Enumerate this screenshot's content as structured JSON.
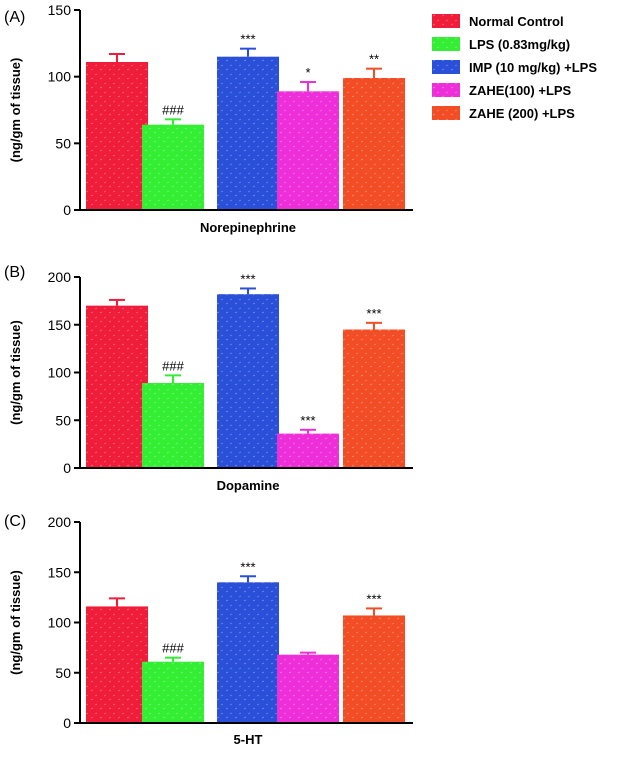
{
  "legend": [
    {
      "label": "Normal Control",
      "color": "#ef1c3a"
    },
    {
      "label": "LPS (0.83mg/kg)",
      "color": "#33ee33"
    },
    {
      "label": "IMP (10 mg/kg) +LPS",
      "color": "#2a4fd8"
    },
    {
      "label": "ZAHE(100) +LPS",
      "color": "#ee2fd9"
    },
    {
      "label": "ZAHE (200) +LPS",
      "color": "#f24d24"
    }
  ],
  "chart_data": [
    {
      "type": "bar",
      "panel_label": "(A)",
      "title": "",
      "xlabel": "Norepinephrine",
      "ylabel": "(ng/gm of tissue)",
      "ylim": [
        0,
        150
      ],
      "yticks": [
        "0",
        "50",
        "100",
        "150"
      ],
      "series": [
        {
          "name": "Normal Control",
          "value": 111,
          "error": 6,
          "annotation": ""
        },
        {
          "name": "LPS (0.83mg/kg)",
          "value": 64,
          "error": 4,
          "annotation": "###"
        },
        {
          "name": "IMP (10 mg/kg) +LPS",
          "value": 115,
          "error": 6,
          "annotation": "***"
        },
        {
          "name": "ZAHE(100) +LPS",
          "value": 89,
          "error": 7,
          "annotation": "*"
        },
        {
          "name": "ZAHE (200) +LPS",
          "value": 99,
          "error": 7,
          "annotation": "**"
        }
      ]
    },
    {
      "type": "bar",
      "panel_label": "(B)",
      "title": "",
      "xlabel": "Dopamine",
      "ylabel": "(ng/gm of tissue)",
      "ylim": [
        0,
        200
      ],
      "yticks": [
        "0",
        "50",
        "100",
        "150",
        "200"
      ],
      "series": [
        {
          "name": "Normal Control",
          "value": 170,
          "error": 6,
          "annotation": ""
        },
        {
          "name": "LPS (0.83mg/kg)",
          "value": 89,
          "error": 8,
          "annotation": "###"
        },
        {
          "name": "IMP (10 mg/kg) +LPS",
          "value": 182,
          "error": 6,
          "annotation": "***"
        },
        {
          "name": "ZAHE(100) +LPS",
          "value": 36,
          "error": 4,
          "annotation": "***"
        },
        {
          "name": "ZAHE (200) +LPS",
          "value": 145,
          "error": 7,
          "annotation": "***"
        }
      ]
    },
    {
      "type": "bar",
      "panel_label": "(C)",
      "title": "",
      "xlabel": "5-HT",
      "ylabel": "(ng/gm of tissue)",
      "ylim": [
        0,
        200
      ],
      "yticks": [
        "0",
        "50",
        "100",
        "150",
        "200"
      ],
      "series": [
        {
          "name": "Normal Control",
          "value": 116,
          "error": 8,
          "annotation": ""
        },
        {
          "name": "LPS (0.83mg/kg)",
          "value": 61,
          "error": 4,
          "annotation": "###"
        },
        {
          "name": "IMP (10 mg/kg) +LPS",
          "value": 140,
          "error": 6,
          "annotation": "***"
        },
        {
          "name": "ZAHE(100) +LPS",
          "value": 68,
          "error": 2,
          "annotation": ""
        },
        {
          "name": "ZAHE (200) +LPS",
          "value": 107,
          "error": 7,
          "annotation": "***"
        }
      ]
    }
  ]
}
